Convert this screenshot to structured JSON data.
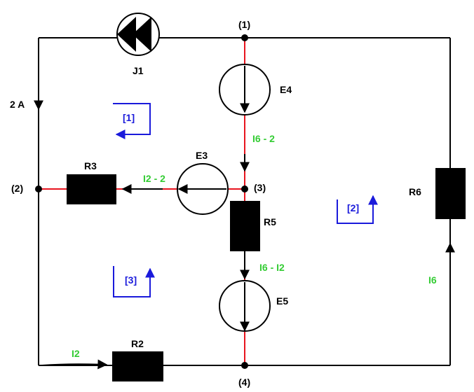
{
  "colors": {
    "wire": "#000000",
    "branch": "#e8141e",
    "current_label": "#33cc33",
    "loop": "#1a1adb"
  },
  "nodes": {
    "n1": "(1)",
    "n2": "(2)",
    "n3": "(3)",
    "n4": "(4)"
  },
  "components": {
    "j1": "J1",
    "j1_value": "2 A",
    "e3": "E3",
    "e4": "E4",
    "e5": "E5",
    "r2": "R2",
    "r3": "R3",
    "r5": "R5",
    "r6": "R6"
  },
  "currents": {
    "i2": "I2",
    "i2_minus_2": "I2 - 2",
    "i6": "I6",
    "i6_minus_2": "I6 - 2",
    "i6_minus_i2": "I6 - I2"
  },
  "loops": {
    "loop1": "[1]",
    "loop2": "[2]",
    "loop3": "[3]"
  }
}
